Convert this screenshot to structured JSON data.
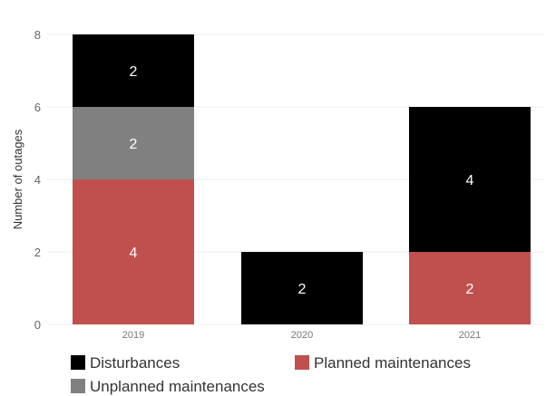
{
  "chart_data": {
    "type": "bar",
    "stacked": true,
    "categories": [
      "2019",
      "2020",
      "2021"
    ],
    "series": [
      {
        "name": "Planned maintenances",
        "color": "#c0504d",
        "values": [
          4,
          0,
          2
        ]
      },
      {
        "name": "Unplanned maintenances",
        "color": "#808080",
        "values": [
          2,
          0,
          0
        ]
      },
      {
        "name": "Disturbances",
        "color": "#000000",
        "values": [
          2,
          2,
          4
        ]
      }
    ],
    "legend_order": [
      "Disturbances",
      "Planned maintenances",
      "Unplanned maintenances"
    ],
    "ylabel": "Number of outages",
    "ylim": [
      0,
      8
    ],
    "yticks": [
      0,
      2,
      4,
      6,
      8
    ],
    "grid": true,
    "legend_position": "bottom-left"
  }
}
